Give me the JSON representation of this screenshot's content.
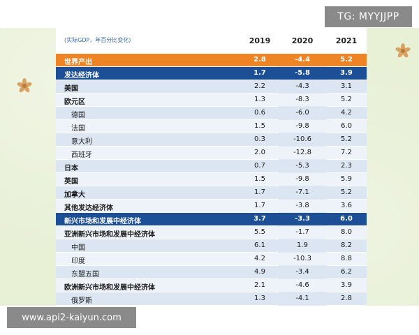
{
  "watermark_top": "TG: MYYJJPP",
  "watermark_bottom": "www.api2-kaiyun.com",
  "table": {
    "unit_note": "(实际GDP，年百分比变化)",
    "years": [
      "2019",
      "2020",
      "2021"
    ],
    "rows": [
      {
        "label": "世界产出",
        "values": [
          "2.8",
          "-4.4",
          "5.2"
        ],
        "style": "world"
      },
      {
        "label": "发达经济体",
        "values": [
          "1.7",
          "-5.8",
          "3.9"
        ],
        "style": "adv"
      },
      {
        "label": "美国",
        "values": [
          "2.2",
          "-4.3",
          "3.1"
        ],
        "style": "bold"
      },
      {
        "label": "欧元区",
        "values": [
          "1.3",
          "-8.3",
          "5.2"
        ],
        "style": "bold"
      },
      {
        "label": "德国",
        "values": [
          "0.6",
          "-6.0",
          "4.2"
        ],
        "style": "indent"
      },
      {
        "label": "法国",
        "values": [
          "1.5",
          "-9.8",
          "6.0"
        ],
        "style": "indent"
      },
      {
        "label": "意大利",
        "values": [
          "0.3",
          "-10.6",
          "5.2"
        ],
        "style": "indent"
      },
      {
        "label": "西班牙",
        "values": [
          "2.0",
          "-12.8",
          "7.2"
        ],
        "style": "indent"
      },
      {
        "label": "日本",
        "values": [
          "0.7",
          "-5.3",
          "2.3"
        ],
        "style": "bold"
      },
      {
        "label": "英国",
        "values": [
          "1.5",
          "-9.8",
          "5.9"
        ],
        "style": "bold"
      },
      {
        "label": "加拿大",
        "values": [
          "1.7",
          "-7.1",
          "5.2"
        ],
        "style": "bold"
      },
      {
        "label": "其他发达经济体",
        "values": [
          "1.7",
          "-3.8",
          "3.6"
        ],
        "style": "bold"
      },
      {
        "label": "新兴市场和发展中经济体",
        "values": [
          "3.7",
          "-3.3",
          "6.0"
        ],
        "style": "adv"
      },
      {
        "label": "亚洲新兴市场和发展中经济体",
        "values": [
          "5.5",
          "-1.7",
          "8.0"
        ],
        "style": "bold"
      },
      {
        "label": "中国",
        "values": [
          "6.1",
          "1.9",
          "8.2"
        ],
        "style": "indent"
      },
      {
        "label": "印度",
        "values": [
          "4.2",
          "-10.3",
          "8.8"
        ],
        "style": "indent"
      },
      {
        "label": "东盟五国",
        "values": [
          "4.9",
          "-3.4",
          "6.2"
        ],
        "style": "indent"
      },
      {
        "label": "欧洲新兴市场和发展中经济体",
        "values": [
          "2.1",
          "-4.6",
          "3.9"
        ],
        "style": "bold"
      },
      {
        "label": "俄罗斯",
        "values": [
          "1.3",
          "-4.1",
          "2.8"
        ],
        "style": "indent"
      }
    ]
  },
  "colors": {
    "world_row": "#ee8424",
    "advanced_row": "#1d4f97",
    "stripe_light": "#eef3f9",
    "stripe_dark": "#dce6f2"
  }
}
